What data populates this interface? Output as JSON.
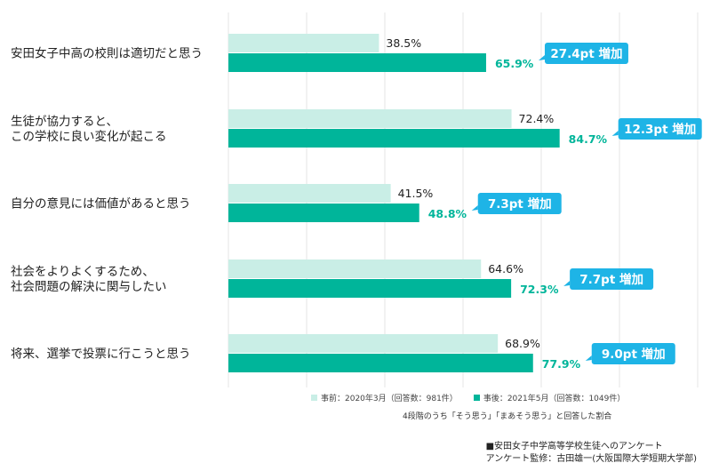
{
  "colors": {
    "before": "#c9eee6",
    "after": "#00b59a",
    "badge": "#1eb4e6",
    "grid": "#e6e6e6"
  },
  "chart_data": {
    "type": "bar",
    "orientation": "horizontal",
    "xlim": [
      0,
      100
    ],
    "categories": [
      [
        "安田女子中高の校則は適切だと思う"
      ],
      [
        "生徒が協力すると、",
        "この学校に良い変化が起こる"
      ],
      [
        "自分の意見には価値があると思う"
      ],
      [
        "社会をよりよくするため、",
        "社会問題の解決に関与したい"
      ],
      [
        "将来、選挙で投票に行こうと思う"
      ]
    ],
    "series": [
      {
        "name": "事前：2020年3月（回答数：981件）",
        "values": [
          38.5,
          72.4,
          41.5,
          64.6,
          68.9
        ]
      },
      {
        "name": "事後：2021年5月（回答数：1049件）",
        "values": [
          65.9,
          84.7,
          48.8,
          72.3,
          77.9
        ]
      }
    ],
    "value_labels_before": [
      "38.5%",
      "72.4%",
      "41.5%",
      "64.6%",
      "68.9%"
    ],
    "value_labels_after": [
      "65.9%",
      "84.7%",
      "48.8%",
      "72.3%",
      "77.9%"
    ],
    "annotations": [
      "27.4pt 増加",
      "12.3pt 増加",
      "7.3pt 増加",
      "7.7pt 増加",
      "9.0pt 増加"
    ],
    "grid": true,
    "legend_position": "bottom"
  },
  "legend": {
    "before": "事前：2020年3月（回答数：981件）",
    "after": "事後：2021年5月（回答数：1049件）"
  },
  "note": "4段階のうち「そう思う」「まあそう思う」と回答した割合",
  "source": {
    "line1": "■安田女子中学高等学校生徒へのアンケート",
    "line2": "アンケート監修：古田雄一(大阪国際大学短期大学部)"
  }
}
